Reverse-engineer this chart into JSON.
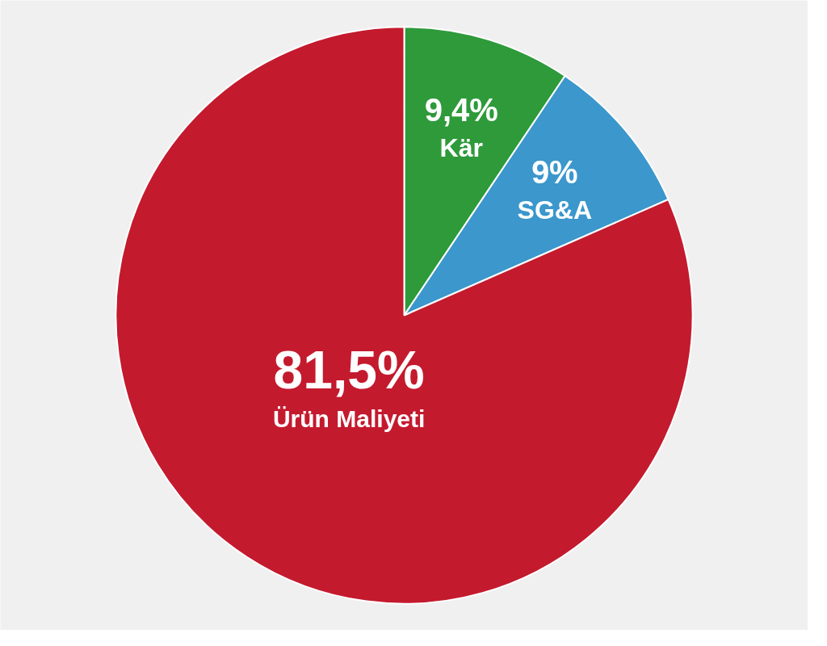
{
  "chart_data": {
    "type": "pie",
    "categories": [
      "Kär",
      "SG&A",
      "Ürün Maliyeti"
    ],
    "values": [
      9.4,
      9,
      81.5
    ],
    "value_labels": [
      "9,4%",
      "9%",
      "81,5%"
    ],
    "colors": [
      "#2e9a3a",
      "#3b97cc",
      "#c41a2e"
    ]
  }
}
